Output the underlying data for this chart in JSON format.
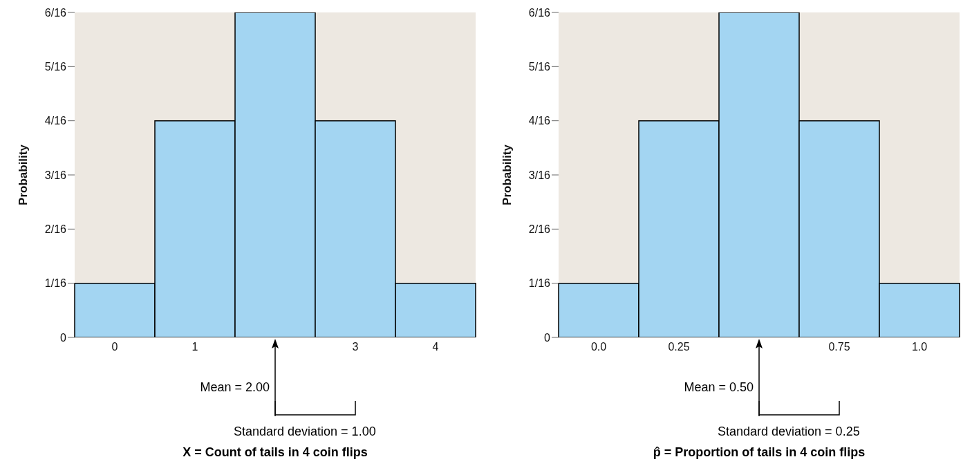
{
  "chart_data": [
    {
      "type": "bar",
      "ylabel": "Probability",
      "xlabel": "X = Count of tails in 4 coin flips",
      "categories": [
        "0",
        "1",
        null,
        "3",
        "4"
      ],
      "values": [
        0.0625,
        0.25,
        0.375,
        0.25,
        0.0625
      ],
      "color": "#a3d5f2",
      "ylim": [
        0,
        0.375
      ],
      "yticks": [
        0,
        {
          "value": 0.0625,
          "label": "1/16"
        },
        {
          "value": 0.125,
          "label": "2/16"
        },
        {
          "value": 0.1875,
          "label": "3/16"
        },
        {
          "value": 0.25,
          "label": "4/16"
        },
        {
          "value": 0.3125,
          "label": "5/16"
        },
        {
          "value": 0.375,
          "label": "6/16"
        }
      ],
      "annotations": [
        "Mean = 2.00",
        "Standard deviation = 1.00"
      ]
    },
    {
      "type": "bar",
      "ylabel": "Probability",
      "xlabel": "p̂ = Proportion of tails in 4 coin flips",
      "categories": [
        "0.0",
        "0.25",
        null,
        "0.75",
        "1.0"
      ],
      "values": [
        0.0625,
        0.25,
        0.375,
        0.25,
        0.0625
      ],
      "color": "#a3d5f2",
      "ylim": [
        0,
        0.375
      ],
      "yticks": [
        0,
        {
          "value": 0.0625,
          "label": "1/16"
        },
        {
          "value": 0.125,
          "label": "2/16"
        },
        {
          "value": 0.1875,
          "label": "3/16"
        },
        {
          "value": 0.25,
          "label": "4/16"
        },
        {
          "value": 0.3125,
          "label": "5/16"
        },
        {
          "value": 0.375,
          "label": "6/16"
        }
      ],
      "annotations": [
        "Mean = 0.50",
        "Standard deviation = 0.25"
      ]
    }
  ]
}
